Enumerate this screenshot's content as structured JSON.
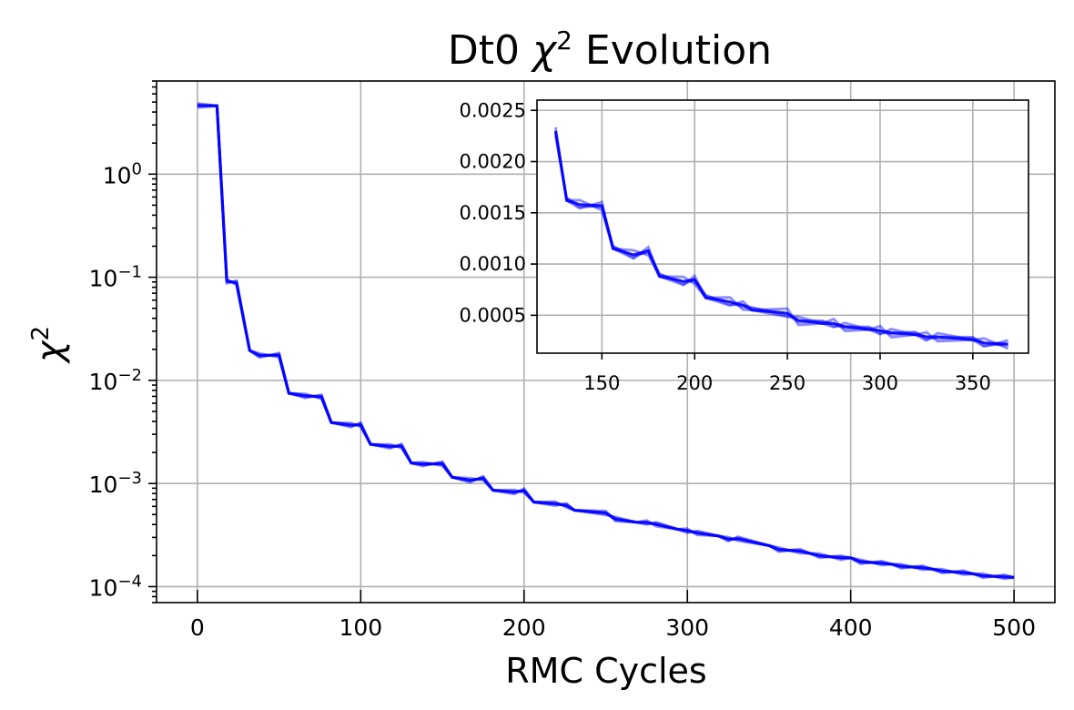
{
  "chart_data": [
    {
      "type": "line",
      "title_prefix": "Dt0 ",
      "title_var": "χ",
      "title_var_sup": "2",
      "title_suffix": " Evolution",
      "xlabel": "RMC Cycles",
      "ylabel_base": "χ",
      "ylabel_sup": "2",
      "yscale": "log",
      "xlim": [
        -25,
        525
      ],
      "ylim": [
        7e-05,
        8
      ],
      "xticks": [
        0,
        100,
        200,
        300,
        400,
        500
      ],
      "xtick_labels": [
        "0",
        "100",
        "200",
        "300",
        "400",
        "500"
      ],
      "yticks": [
        0.0001,
        0.001,
        0.01,
        0.1,
        1
      ],
      "ytick_labels": [
        {
          "base": "10",
          "exp": "−4"
        },
        {
          "base": "10",
          "exp": "−3"
        },
        {
          "base": "10",
          "exp": "−2"
        },
        {
          "base": "10",
          "exp": "−1"
        },
        {
          "base": "10",
          "exp": "0"
        }
      ],
      "grid": true,
      "series": [
        {
          "color": "#0000ff",
          "x": [
            0,
            12,
            18,
            24,
            32,
            38,
            50,
            56,
            66,
            76,
            82,
            94,
            100,
            106,
            118,
            125,
            131,
            138,
            150,
            156,
            167,
            175,
            181,
            194,
            200,
            206,
            219,
            226,
            231,
            250,
            256,
            269,
            275,
            281,
            294,
            300,
            306,
            319,
            325,
            331,
            350,
            356,
            369,
            375,
            381,
            394,
            400,
            406,
            419,
            425,
            431,
            444,
            450,
            456,
            469,
            475,
            481,
            494,
            500
          ],
          "y": [
            4.6,
            4.6,
            0.092,
            0.088,
            0.0195,
            0.0175,
            0.0175,
            0.0075,
            0.0071,
            0.0069,
            0.0039,
            0.0037,
            0.0037,
            0.0024,
            0.0023,
            0.0023,
            0.00158,
            0.00155,
            0.00155,
            0.00115,
            0.00108,
            0.00112,
            0.00086,
            0.00083,
            0.00085,
            0.00066,
            0.00064,
            0.00061,
            0.00055,
            0.00052,
            0.00045,
            0.00042,
            0.00042,
            0.0004,
            0.00036,
            0.00035,
            0.00033,
            0.00031,
            0.00029,
            0.00029,
            0.00025,
            0.00023,
            0.00022,
            0.00021,
            0.0002,
            0.00019,
            0.00019,
            0.000175,
            0.000168,
            0.000165,
            0.000158,
            0.000152,
            0.000148,
            0.000142,
            0.000136,
            0.000133,
            0.000128,
            0.000124,
            0.000123
          ]
        }
      ]
    },
    {
      "type": "line",
      "role": "inset",
      "xlim": [
        115,
        380
      ],
      "ylim": [
        0.00013,
        0.0026
      ],
      "xticks": [
        150,
        200,
        250,
        300,
        350
      ],
      "xtick_labels": [
        "150",
        "200",
        "250",
        "300",
        "350"
      ],
      "yticks": [
        0.0005,
        0.001,
        0.0015,
        0.002,
        0.0025
      ],
      "ytick_labels": [
        "0.0005",
        "0.0010",
        "0.0015",
        "0.0020",
        "0.0025"
      ],
      "grid": true,
      "series": [
        {
          "color": "#0000ff",
          "x": [
            125,
            131,
            138,
            150,
            156,
            167,
            175,
            181,
            194,
            200,
            206,
            219,
            226,
            231,
            250,
            256,
            269,
            275,
            281,
            294,
            300,
            306,
            319,
            325,
            331,
            350,
            356,
            369
          ],
          "y": [
            0.0023,
            0.00162,
            0.00158,
            0.00157,
            0.00115,
            0.00109,
            0.00113,
            0.00088,
            0.00083,
            0.00085,
            0.00067,
            0.00063,
            0.0006,
            0.00055,
            0.00052,
            0.00045,
            0.00042,
            0.00042,
            0.00039,
            0.00036,
            0.00035,
            0.00033,
            0.00031,
            0.00029,
            0.00029,
            0.00026,
            0.00023,
            0.00022
          ]
        }
      ]
    }
  ]
}
